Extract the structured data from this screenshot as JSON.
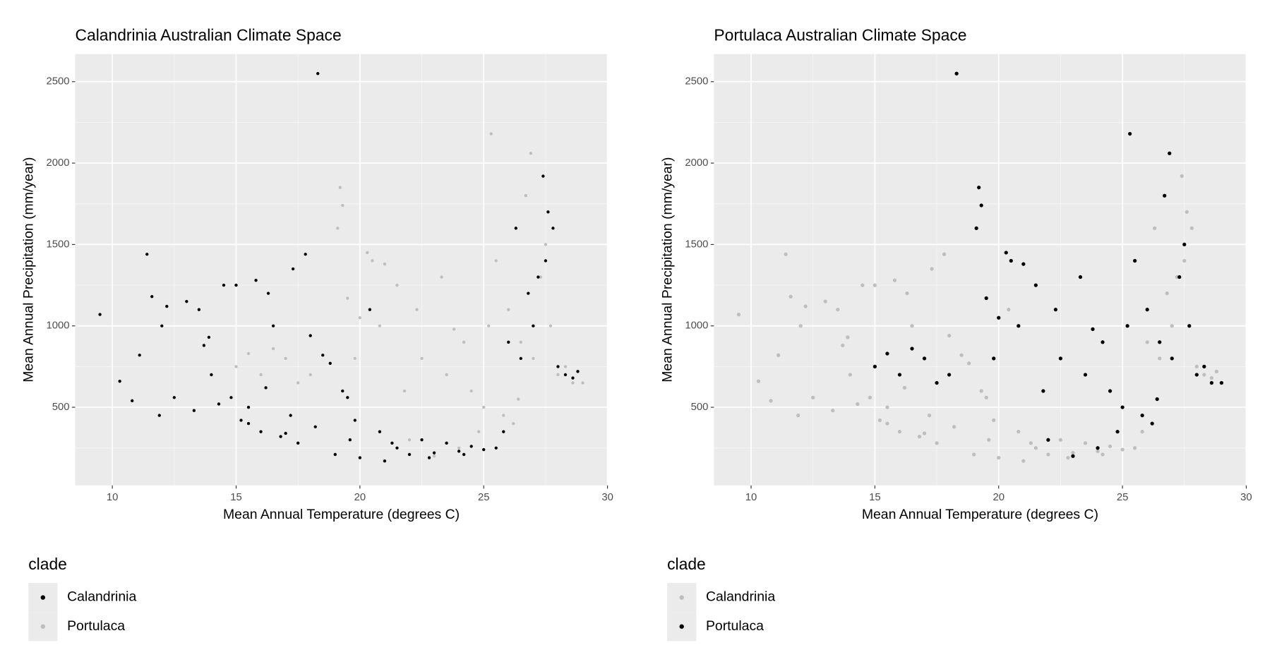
{
  "chart_data": [
    {
      "type": "scatter",
      "title": "Calandrinia Australian Climate Space",
      "x_label": "Mean Annual Temperature (degrees C)",
      "y_label": "Mean Annual Precipitation (mm/year)",
      "legend_title": "clade",
      "xlim": [
        8.5,
        30
      ],
      "ylim": [
        20,
        2670
      ],
      "xticks": [
        10,
        15,
        20,
        25,
        30
      ],
      "yticks": [
        500,
        1000,
        1500,
        2000,
        2500
      ],
      "grid": true,
      "series": [
        {
          "name": "Calandrinia",
          "color": "#000000",
          "x": [
            9.5,
            10.3,
            10.8,
            11.1,
            11.4,
            11.6,
            11.9,
            12.0,
            12.2,
            12.5,
            13.0,
            13.3,
            13.5,
            13.7,
            13.9,
            14.0,
            14.3,
            14.5,
            14.8,
            15.0,
            15.2,
            15.5,
            15.8,
            16.0,
            16.3,
            16.5,
            16.8,
            17.0,
            17.3,
            17.5,
            17.8,
            18.0,
            18.3,
            18.5,
            18.8,
            19.0,
            19.3,
            19.5,
            19.8,
            20.0,
            20.4,
            20.8,
            21.0,
            21.5,
            22.0,
            22.5,
            23.0,
            23.5,
            24.0,
            24.5,
            25.0,
            25.5,
            26.0,
            26.3,
            26.5,
            26.8,
            27.0,
            27.2,
            27.4,
            27.5,
            27.6,
            27.8,
            28.0,
            28.3,
            28.6,
            28.8,
            15.5,
            16.2,
            17.2,
            18.2,
            19.6,
            21.3,
            22.8,
            24.2,
            25.8
          ],
          "values": [
            1070,
            660,
            540,
            820,
            1440,
            1180,
            450,
            1000,
            1120,
            560,
            1150,
            480,
            1100,
            880,
            930,
            700,
            520,
            1250,
            560,
            1250,
            420,
            400,
            1280,
            350,
            1200,
            1000,
            320,
            340,
            1350,
            280,
            1440,
            940,
            2550,
            820,
            770,
            210,
            600,
            560,
            420,
            190,
            1100,
            350,
            170,
            250,
            210,
            300,
            220,
            280,
            230,
            260,
            240,
            250,
            900,
            1600,
            800,
            1200,
            1000,
            1300,
            1920,
            1400,
            1700,
            1600,
            750,
            700,
            680,
            720,
            500,
            620,
            450,
            380,
            300,
            280,
            190,
            210,
            350
          ]
        },
        {
          "name": "Portulaca",
          "color": "#bebebe",
          "x": [
            15.0,
            15.5,
            16.0,
            16.5,
            17.0,
            17.5,
            18.0,
            18.3,
            19.1,
            19.2,
            19.3,
            19.5,
            19.8,
            20.0,
            20.3,
            20.5,
            21.0,
            21.5,
            21.8,
            22.0,
            22.5,
            23.0,
            23.3,
            23.5,
            24.0,
            24.2,
            24.5,
            24.8,
            25.0,
            25.2,
            25.3,
            25.5,
            25.8,
            26.0,
            26.2,
            26.5,
            26.7,
            26.9,
            27.0,
            27.3,
            27.5,
            27.7,
            28.0,
            28.3,
            28.6,
            29.0,
            22.3,
            23.8,
            20.8,
            26.4
          ],
          "values": [
            750,
            830,
            700,
            860,
            800,
            650,
            700,
            2550,
            1600,
            1850,
            1740,
            1170,
            800,
            1050,
            1450,
            1400,
            1380,
            1250,
            600,
            300,
            800,
            200,
            1300,
            700,
            250,
            900,
            600,
            350,
            500,
            1000,
            2180,
            1400,
            450,
            1100,
            400,
            900,
            1800,
            2060,
            800,
            1300,
            1500,
            1000,
            700,
            750,
            650,
            650,
            1100,
            980,
            1000,
            550
          ]
        }
      ]
    },
    {
      "type": "scatter",
      "title": "Portulaca Australian Climate Space",
      "x_label": "Mean Annual Temperature (degrees C)",
      "y_label": "Mean Annual Precipitation (mm/year)",
      "legend_title": "clade",
      "xlim": [
        8.5,
        30
      ],
      "ylim": [
        20,
        2670
      ],
      "xticks": [
        10,
        15,
        20,
        25,
        30
      ],
      "yticks": [
        500,
        1000,
        1500,
        2000,
        2500
      ],
      "grid": true,
      "series": [
        {
          "name": "Calandrinia",
          "color": "#bebebe",
          "x": [
            9.5,
            10.3,
            10.8,
            11.1,
            11.4,
            11.6,
            11.9,
            12.0,
            12.2,
            12.5,
            13.0,
            13.3,
            13.5,
            13.7,
            13.9,
            14.0,
            14.3,
            14.5,
            14.8,
            15.0,
            15.2,
            15.5,
            15.8,
            16.0,
            16.3,
            16.5,
            16.8,
            17.0,
            17.3,
            17.5,
            17.8,
            18.0,
            18.3,
            18.5,
            18.8,
            19.0,
            19.3,
            19.5,
            19.8,
            20.0,
            20.4,
            20.8,
            21.0,
            21.5,
            22.0,
            22.5,
            23.0,
            23.5,
            24.0,
            24.5,
            25.0,
            25.5,
            26.0,
            26.3,
            26.5,
            26.8,
            27.0,
            27.2,
            27.4,
            27.5,
            27.6,
            27.8,
            28.0,
            28.3,
            28.6,
            28.8,
            15.5,
            16.2,
            17.2,
            18.2,
            19.6,
            21.3,
            22.8,
            24.2,
            25.8
          ],
          "values": [
            1070,
            660,
            540,
            820,
            1440,
            1180,
            450,
            1000,
            1120,
            560,
            1150,
            480,
            1100,
            880,
            930,
            700,
            520,
            1250,
            560,
            1250,
            420,
            400,
            1280,
            350,
            1200,
            1000,
            320,
            340,
            1350,
            280,
            1440,
            940,
            2550,
            820,
            770,
            210,
            600,
            560,
            420,
            190,
            1100,
            350,
            170,
            250,
            210,
            300,
            220,
            280,
            230,
            260,
            240,
            250,
            900,
            1600,
            800,
            1200,
            1000,
            1300,
            1920,
            1400,
            1700,
            1600,
            750,
            700,
            680,
            720,
            500,
            620,
            450,
            380,
            300,
            280,
            190,
            210,
            350
          ]
        },
        {
          "name": "Portulaca",
          "color": "#000000",
          "x": [
            15.0,
            15.5,
            16.0,
            16.5,
            17.0,
            17.5,
            18.0,
            18.3,
            19.1,
            19.2,
            19.3,
            19.5,
            19.8,
            20.0,
            20.3,
            20.5,
            21.0,
            21.5,
            21.8,
            22.0,
            22.5,
            23.0,
            23.3,
            23.5,
            24.0,
            24.2,
            24.5,
            24.8,
            25.0,
            25.2,
            25.3,
            25.5,
            25.8,
            26.0,
            26.2,
            26.5,
            26.7,
            26.9,
            27.0,
            27.3,
            27.5,
            27.7,
            28.0,
            28.3,
            28.6,
            29.0,
            22.3,
            23.8,
            20.8,
            26.4
          ],
          "values": [
            750,
            830,
            700,
            860,
            800,
            650,
            700,
            2550,
            1600,
            1850,
            1740,
            1170,
            800,
            1050,
            1450,
            1400,
            1380,
            1250,
            600,
            300,
            800,
            200,
            1300,
            700,
            250,
            900,
            600,
            350,
            500,
            1000,
            2180,
            1400,
            450,
            1100,
            400,
            900,
            1800,
            2060,
            800,
            1300,
            1500,
            1000,
            700,
            750,
            650,
            650,
            1100,
            980,
            1000,
            550
          ]
        }
      ]
    }
  ]
}
